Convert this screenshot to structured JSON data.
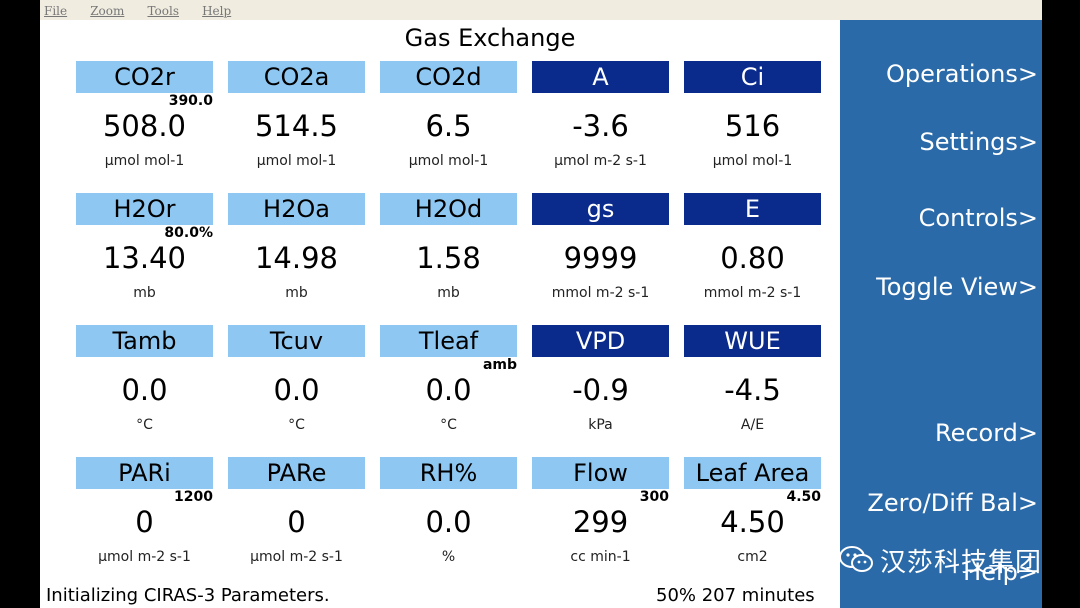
{
  "menubar": {
    "items": [
      "File",
      "Zoom",
      "Tools",
      "Help"
    ]
  },
  "title": "Gas Exchange",
  "tiles": [
    {
      "label": "CO2r",
      "style": "light",
      "value": "508.0",
      "unit": "µmol mol-1",
      "setpoint": "390.0"
    },
    {
      "label": "CO2a",
      "style": "light",
      "value": "514.5",
      "unit": "µmol mol-1",
      "setpoint": ""
    },
    {
      "label": "CO2d",
      "style": "light",
      "value": "6.5",
      "unit": "µmol mol-1",
      "setpoint": ""
    },
    {
      "label": "A",
      "style": "dark",
      "value": "-3.6",
      "unit": "µmol m-2 s-1",
      "setpoint": ""
    },
    {
      "label": "Ci",
      "style": "dark",
      "value": "516",
      "unit": "µmol mol-1",
      "setpoint": ""
    },
    {
      "label": "H2Or",
      "style": "light",
      "value": "13.40",
      "unit": "mb",
      "setpoint": "80.0%"
    },
    {
      "label": "H2Oa",
      "style": "light",
      "value": "14.98",
      "unit": "mb",
      "setpoint": ""
    },
    {
      "label": "H2Od",
      "style": "light",
      "value": "1.58",
      "unit": "mb",
      "setpoint": ""
    },
    {
      "label": "gs",
      "style": "dark",
      "value": "9999",
      "unit": "mmol m-2 s-1",
      "setpoint": ""
    },
    {
      "label": "E",
      "style": "dark",
      "value": "0.80",
      "unit": "mmol m-2 s-1",
      "setpoint": ""
    },
    {
      "label": "Tamb",
      "style": "light",
      "value": "0.0",
      "unit": "°C",
      "setpoint": ""
    },
    {
      "label": "Tcuv",
      "style": "light",
      "value": "0.0",
      "unit": "°C",
      "setpoint": ""
    },
    {
      "label": "Tleaf",
      "style": "light",
      "value": "0.0",
      "unit": "°C",
      "setpoint": "amb"
    },
    {
      "label": "VPD",
      "style": "dark",
      "value": "-0.9",
      "unit": "kPa",
      "setpoint": ""
    },
    {
      "label": "WUE",
      "style": "dark",
      "value": "-4.5",
      "unit": "A/E",
      "setpoint": ""
    },
    {
      "label": "PARi",
      "style": "light",
      "value": "0",
      "unit": "µmol m-2 s-1",
      "setpoint": "1200"
    },
    {
      "label": "PARe",
      "style": "light",
      "value": "0",
      "unit": "µmol m-2 s-1",
      "setpoint": ""
    },
    {
      "label": "RH%",
      "style": "light",
      "value": "0.0",
      "unit": "%",
      "setpoint": ""
    },
    {
      "label": "Flow",
      "style": "light",
      "value": "299",
      "unit": "cc min-1",
      "setpoint": "300"
    },
    {
      "label": "Leaf Area",
      "style": "light",
      "value": "4.50",
      "unit": "cm2",
      "setpoint": "4.50"
    }
  ],
  "status": {
    "message": "Initializing CIRAS-3 Parameters.",
    "battery": "50% 207 minutes"
  },
  "sidebar": {
    "items": [
      "Operations>",
      "Settings>",
      "Controls>",
      "Toggle View>",
      "Record>",
      "Zero/Diff Bal>",
      "Help>"
    ]
  },
  "watermark": {
    "text": "汉莎科技集团",
    "icon": "wechat-icon"
  },
  "colors": {
    "light_tile": "#8ec8f2",
    "dark_tile": "#0a2a8c",
    "sidebar": "#2b6aa8"
  }
}
